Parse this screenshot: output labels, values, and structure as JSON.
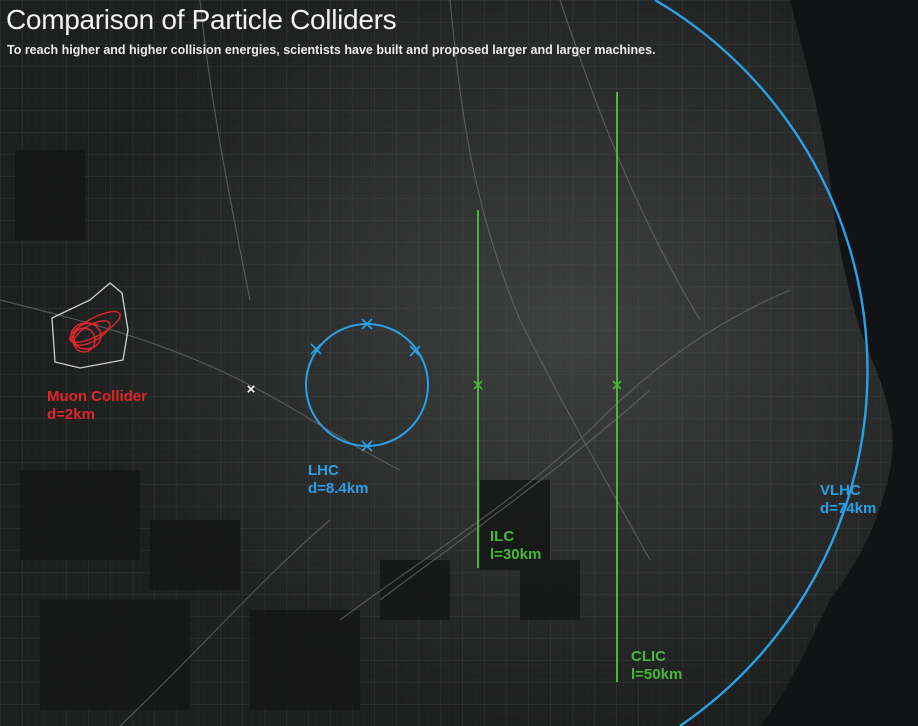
{
  "title": "Comparison of Particle Colliders",
  "subtitle": "To reach higher and higher collision energies, scientists have built and proposed larger and larger machines.",
  "colors": {
    "background": "#1b1c1c",
    "lake": "#111315",
    "muon": "#e0262b",
    "lhc": "#2aa0e6",
    "linear": "#47b83a",
    "vlhc": "#2aa0e6",
    "boundary": "#cfcfcf",
    "marker": "#ffffff"
  },
  "colliders": {
    "muon": {
      "name": "Muon Collider",
      "size": "d=2km"
    },
    "lhc": {
      "name": "LHC",
      "size": "d=8.4km"
    },
    "ilc": {
      "name": "ILC",
      "size": "l=30km"
    },
    "clic": {
      "name": "CLIC",
      "size": "l=50km"
    },
    "vlhc": {
      "name": "VLHC",
      "size": "d=74km"
    }
  },
  "markers": {
    "center_symbol": "×"
  }
}
